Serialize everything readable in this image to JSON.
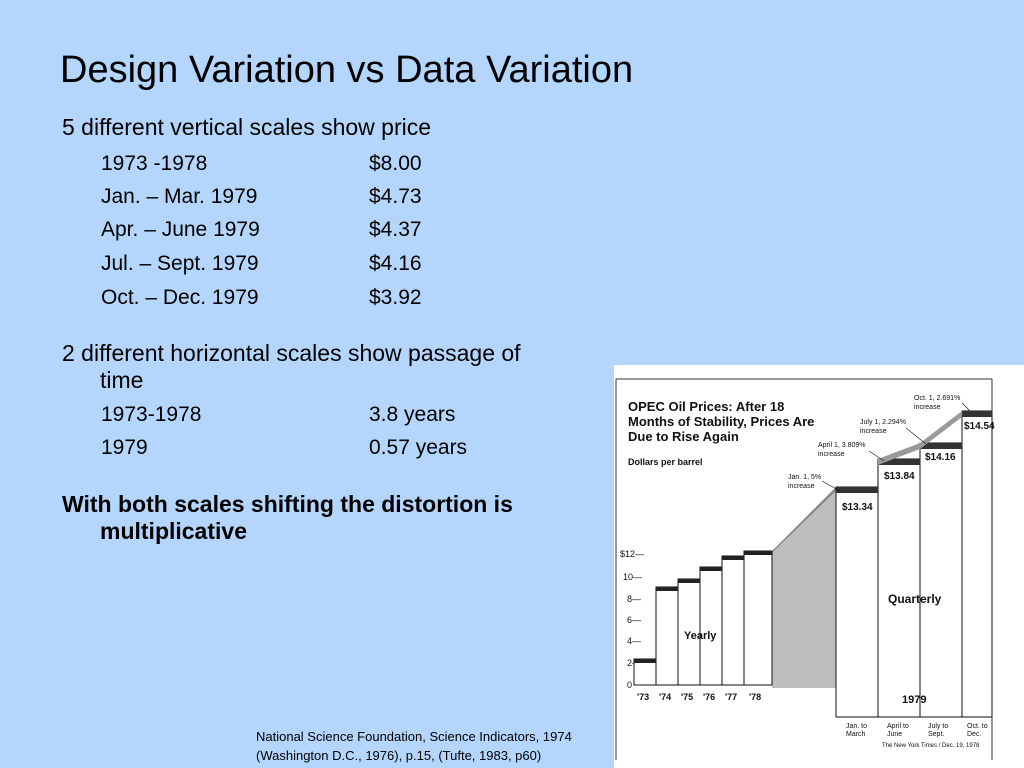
{
  "slide": {
    "title": "Design Variation vs Data Variation",
    "vertical_heading": "5 different vertical scales show price",
    "vertical_rows": [
      {
        "label": "1973 -1978",
        "value": "$8.00"
      },
      {
        "label": "Jan. – Mar. 1979",
        "value": "$4.73"
      },
      {
        "label": "Apr. – June 1979",
        "value": "$4.37"
      },
      {
        "label": "Jul. – Sept. 1979",
        "value": "$4.16"
      },
      {
        "label": "Oct. – Dec. 1979",
        "value": "$3.92"
      }
    ],
    "horizontal_heading_1": "2 different horizontal scales show passage of",
    "horizontal_heading_2": "time",
    "horizontal_rows": [
      {
        "label": "1973-1978",
        "value": "3.8 years"
      },
      {
        "label": "1979",
        "value": "0.57 years"
      }
    ],
    "conclusion_1": "With both scales shifting the distortion is",
    "conclusion_2": "multiplicative",
    "citation_1": "National Science Foundation, Science Indicators, 1974",
    "citation_2": "(Washington D.C., 1976), p.15, (Tufte, 1983, p60)"
  },
  "figure": {
    "title_1": "OPEC Oil Prices: After 18",
    "title_2": "Months of Stability, Prices Are",
    "title_3": "Due to Rise Again",
    "unit": "Dollars per barrel",
    "y_ticks": [
      "$12—",
      "10—",
      "8—",
      "6—",
      "4—",
      "2—",
      "0"
    ],
    "x_years": [
      "'73",
      "'74",
      "'75",
      "'76",
      "'77",
      "'78"
    ],
    "yearly_label": "Yearly",
    "quarterly_label": "Quarterly",
    "year_label": "1979",
    "quarters": [
      {
        "l1": "Jan. to",
        "l2": "March",
        "price": "$13.34",
        "note1": "Jan. 1, 5%",
        "note2": "increase"
      },
      {
        "l1": "April to",
        "l2": "June",
        "price": "$13.84",
        "note1": "April 1, 3.809%",
        "note2": "increase"
      },
      {
        "l1": "July to",
        "l2": "Sept.",
        "price": "$14.16",
        "note1": "July 1, 2.294%",
        "note2": "increase"
      },
      {
        "l1": "Oct. to",
        "l2": "Dec.",
        "price": "$14.54",
        "note1": "Oct. 1, 2.691%",
        "note2": "increase"
      }
    ],
    "source": "The New York Times / Dec. 19, 1978",
    "colors": {
      "background": "#b4d6fc",
      "figure_bg": "#ffffff",
      "shade": "#bdbdbd",
      "ink": "#111111"
    }
  }
}
